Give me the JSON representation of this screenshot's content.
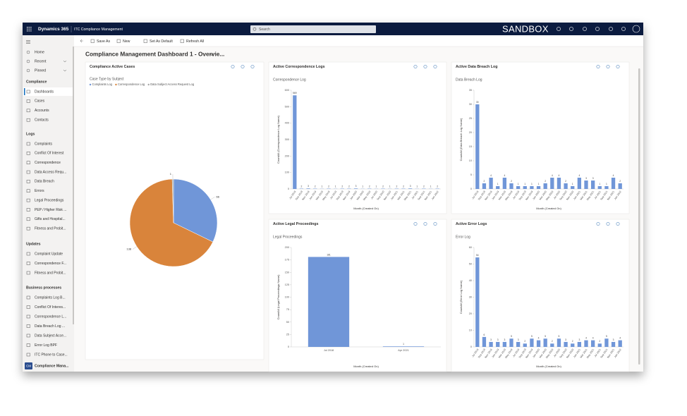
{
  "header": {
    "app": "Dynamics 365",
    "module": "ITC Compliance Management",
    "search": "Search",
    "environment": "SANDBOX"
  },
  "commands": [
    "Save As",
    "New",
    "Set As Default",
    "Refresh All"
  ],
  "nav": {
    "top": [
      "Home",
      "Recent",
      "Pinned"
    ],
    "groups": [
      {
        "title": "Compliance",
        "items": [
          "Dashboards",
          "Cases",
          "Accounts",
          "Contacts"
        ]
      },
      {
        "title": "Logs",
        "items": [
          "Complaints",
          "Conflict Of Interest",
          "Correspondence",
          "Data Access Requ...",
          "Data Breach",
          "Errors",
          "Legal Proceedings",
          "PEP / Higher Risk ...",
          "Gifts and Hospital...",
          "Fitness and Probit..."
        ]
      },
      {
        "title": "Updates",
        "items": [
          "Complaint Update",
          "Correspondence F...",
          "Fitness and Probit..."
        ]
      },
      {
        "title": "Business processes",
        "items": [
          "Complaints Log B...",
          "Conflict Of Interes...",
          "Correspondence L...",
          "Data Breach Log ...",
          "Data Subject Acce...",
          "Error Log BPF",
          "ITC Phone to Case..."
        ]
      }
    ],
    "area_badge": "CM",
    "area": "Compliance Mana..."
  },
  "dashboard_title": "Compliance Management Dashboard 1 - Overvie...",
  "chart_data": [
    {
      "type": "pie",
      "title": "Compliance Active Cases",
      "subtitle": "Case Type by Subject",
      "categories": [
        "Complaints Log",
        "Correspondence Log",
        "Data Subject Access Request Log"
      ],
      "values": [
        66,
        138,
        1
      ],
      "colors": [
        "#7096d8",
        "#d9843b",
        "#a5a5a5"
      ]
    },
    {
      "type": "bar",
      "title": "Active Correspondence Logs",
      "subtitle": "Correspondence Log",
      "xlabel": "Month (Created On)",
      "ylabel": "CountAll (Correspondence Log Name)",
      "categories": [
        "Jul 2018",
        "Sep 2018",
        "Nov 2018",
        "Jan 2019",
        "Mar 2019",
        "May 2019",
        "Jul 2019",
        "Sep 2019",
        "Nov 2019",
        "Jan 2020",
        "Mar 2020",
        "May 2020",
        "Jul 2020",
        "Sep 2020",
        "Nov 2020",
        "Jan 2021",
        "Mar 2021",
        "May 2021",
        "Jul 2021",
        "Sep 2021",
        "Nov 2021",
        "Jan 2022"
      ],
      "values": [
        569,
        2,
        3,
        2,
        1,
        2,
        1,
        2,
        2,
        3,
        1,
        2,
        1,
        2,
        1,
        2,
        2,
        3,
        1,
        2,
        1,
        2
      ],
      "color": "#7096d8",
      "ylim": [
        0,
        600
      ],
      "yticks": [
        0,
        100,
        200,
        300,
        400,
        500,
        600
      ]
    },
    {
      "type": "bar",
      "title": "Active Data Breach Log",
      "subtitle": "Data Breach Log",
      "xlabel": "Month (Created On)",
      "ylabel": "CountAll (Data Breach Log Name)",
      "categories": [
        "Jul 2018",
        "Sep 2018",
        "Nov 2018",
        "Jan 2019",
        "Mar 2019",
        "May 2019",
        "Jul 2019",
        "Sep 2019",
        "Nov 2019",
        "Jan 2020",
        "Mar 2020",
        "May 2020",
        "Jul 2020",
        "Sep 2020",
        "Nov 2020",
        "Jan 2021",
        "Mar 2021",
        "May 2021",
        "Jul 2021",
        "Sep 2021",
        "Nov 2021",
        "Jan 2022"
      ],
      "values": [
        30,
        2,
        4,
        1,
        4,
        2,
        1,
        1,
        1,
        1,
        2,
        4,
        4,
        2,
        1,
        4,
        3,
        3,
        1,
        1,
        4,
        2
      ],
      "color": "#7096d8",
      "ylim": [
        0,
        35
      ],
      "yticks": [
        0,
        5,
        10,
        15,
        20,
        25,
        30,
        35
      ]
    },
    {
      "type": "bar",
      "title": "Active Legal Proceedings",
      "subtitle": "Legal Proceedings",
      "xlabel": "Month (Created On)",
      "ylabel": "CountAll (Legal Proceedings Name)",
      "categories": [
        "Jul 2018",
        "Apr 2021"
      ],
      "values": [
        181,
        1
      ],
      "color": "#7096d8",
      "ylim": [
        0,
        200
      ],
      "yticks": [
        0,
        25,
        50,
        75,
        100,
        125,
        150,
        175,
        200
      ]
    },
    {
      "type": "bar",
      "title": "Active Error Logs",
      "subtitle": "Error Log",
      "xlabel": "Month (Created On)",
      "ylabel": "CountAll (Error Log Name)",
      "categories": [
        "Jul 2018",
        "Sep 2018",
        "Nov 2018",
        "Jan 2019",
        "Mar 2019",
        "May 2019",
        "Jul 2019",
        "Sep 2019",
        "Nov 2019",
        "Jan 2020",
        "Mar 2020",
        "May 2020",
        "Jul 2020",
        "Sep 2020",
        "Nov 2020",
        "Jan 2021",
        "Mar 2021",
        "May 2021",
        "Jul 2021",
        "Sep 2021",
        "Nov 2021",
        "Jan 2022"
      ],
      "values": [
        54,
        6,
        3,
        3,
        3,
        5,
        3,
        2,
        5,
        4,
        5,
        2,
        5,
        3,
        2,
        3,
        4,
        4,
        2,
        5,
        3,
        4
      ],
      "color": "#7096d8",
      "ylim": [
        0,
        60
      ],
      "yticks": [
        0,
        10,
        20,
        30,
        40,
        50,
        60
      ]
    }
  ]
}
